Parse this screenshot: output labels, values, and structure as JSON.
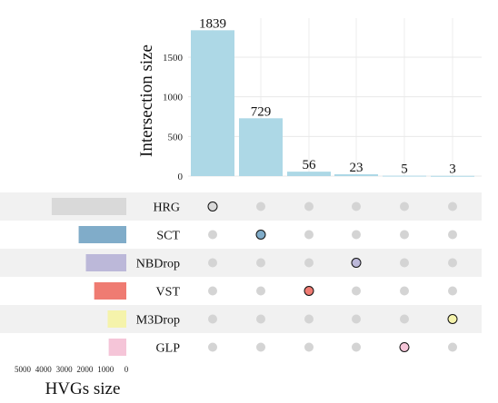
{
  "chart_data": {
    "type": "upset",
    "intersection_bars": {
      "ylabel": "Intersection size",
      "yticks": [
        0,
        500,
        1000,
        1500
      ],
      "ylim": [
        0,
        1900
      ],
      "values": [
        1839,
        729,
        56,
        23,
        5,
        3
      ],
      "value_labels": [
        "1839",
        "729",
        "56",
        "23",
        "5",
        "3"
      ],
      "color": "#add8e6"
    },
    "sets": [
      {
        "name": "HRG",
        "size": 3600,
        "color": "#d9d9d9"
      },
      {
        "name": "SCT",
        "size": 2300,
        "color": "#80acc9"
      },
      {
        "name": "NBDrop",
        "size": 1950,
        "color": "#bcb8d9"
      },
      {
        "name": "VST",
        "size": 1550,
        "color": "#ef7b72"
      },
      {
        "name": "M3Drop",
        "size": 900,
        "color": "#f5f3ab"
      },
      {
        "name": "GLP",
        "size": 850,
        "color": "#f5c5d8"
      }
    ],
    "intersections": [
      {
        "set": "HRG",
        "color": "#d9d9d9"
      },
      {
        "set": "SCT",
        "color": "#80acc9"
      },
      {
        "set": "VST",
        "color": "#ef7b72"
      },
      {
        "set": "NBDrop",
        "color": "#bcb8d9"
      },
      {
        "set": "GLP",
        "color": "#f5c5d8"
      },
      {
        "set": "M3Drop",
        "color": "#f5f3ab"
      }
    ],
    "set_size_axis": {
      "xlabel": "HVGs size",
      "ticks": [
        5000,
        4000,
        3000,
        2000,
        1000,
        0
      ],
      "tick_labels": [
        "5000",
        "4000",
        "3000",
        "2000",
        "1000",
        "0"
      ],
      "xlim": [
        0,
        5000
      ],
      "reversed": true
    },
    "inactive_dot_color": "#d4d4d4",
    "grid": true
  }
}
